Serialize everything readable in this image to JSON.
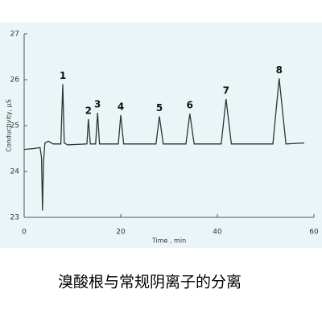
{
  "chart_data": {
    "type": "line",
    "x_label": "Time , min",
    "y_label": "Conductivity, µS",
    "caption": "溴酸根与常规阴离子的分离",
    "x": [
      0,
      2,
      3.3,
      3.6,
      3.8,
      4.0,
      4.3,
      5,
      6,
      7.6,
      8,
      8.3,
      9,
      13,
      13.3,
      13.7,
      14.8,
      15.2,
      15.6,
      19.5,
      20,
      20.6,
      27.3,
      28,
      28.8,
      33.5,
      34.3,
      35.2,
      40.8,
      41.8,
      42.9,
      51.5,
      52.8,
      54.2,
      58
    ],
    "y": [
      24.48,
      24.5,
      24.52,
      24.3,
      23.15,
      24.2,
      24.62,
      24.66,
      24.6,
      24.6,
      25.9,
      24.62,
      24.58,
      24.6,
      25.14,
      24.6,
      24.6,
      25.28,
      24.6,
      24.6,
      25.23,
      24.6,
      24.6,
      25.2,
      24.6,
      24.6,
      25.26,
      24.6,
      24.6,
      25.58,
      24.6,
      24.6,
      26.03,
      24.6,
      24.62
    ],
    "color": "#333333",
    "peaks": [
      {
        "label": "1",
        "x": 8,
        "y": 25.9
      },
      {
        "label": "2",
        "x": 13.3,
        "y": 25.14
      },
      {
        "label": "3",
        "x": 15.2,
        "y": 25.28
      },
      {
        "label": "4",
        "x": 20,
        "y": 25.23
      },
      {
        "label": "5",
        "x": 28,
        "y": 25.2
      },
      {
        "label": "6",
        "x": 34.3,
        "y": 25.26
      },
      {
        "label": "7",
        "x": 41.8,
        "y": 25.58
      },
      {
        "label": "8",
        "x": 52.8,
        "y": 26.03
      }
    ],
    "xlim": [
      0,
      60
    ],
    "xticks": [
      0,
      20,
      40,
      60
    ],
    "ylim": [
      23,
      27
    ],
    "yticks": [
      23,
      24,
      25,
      26,
      27
    ]
  }
}
